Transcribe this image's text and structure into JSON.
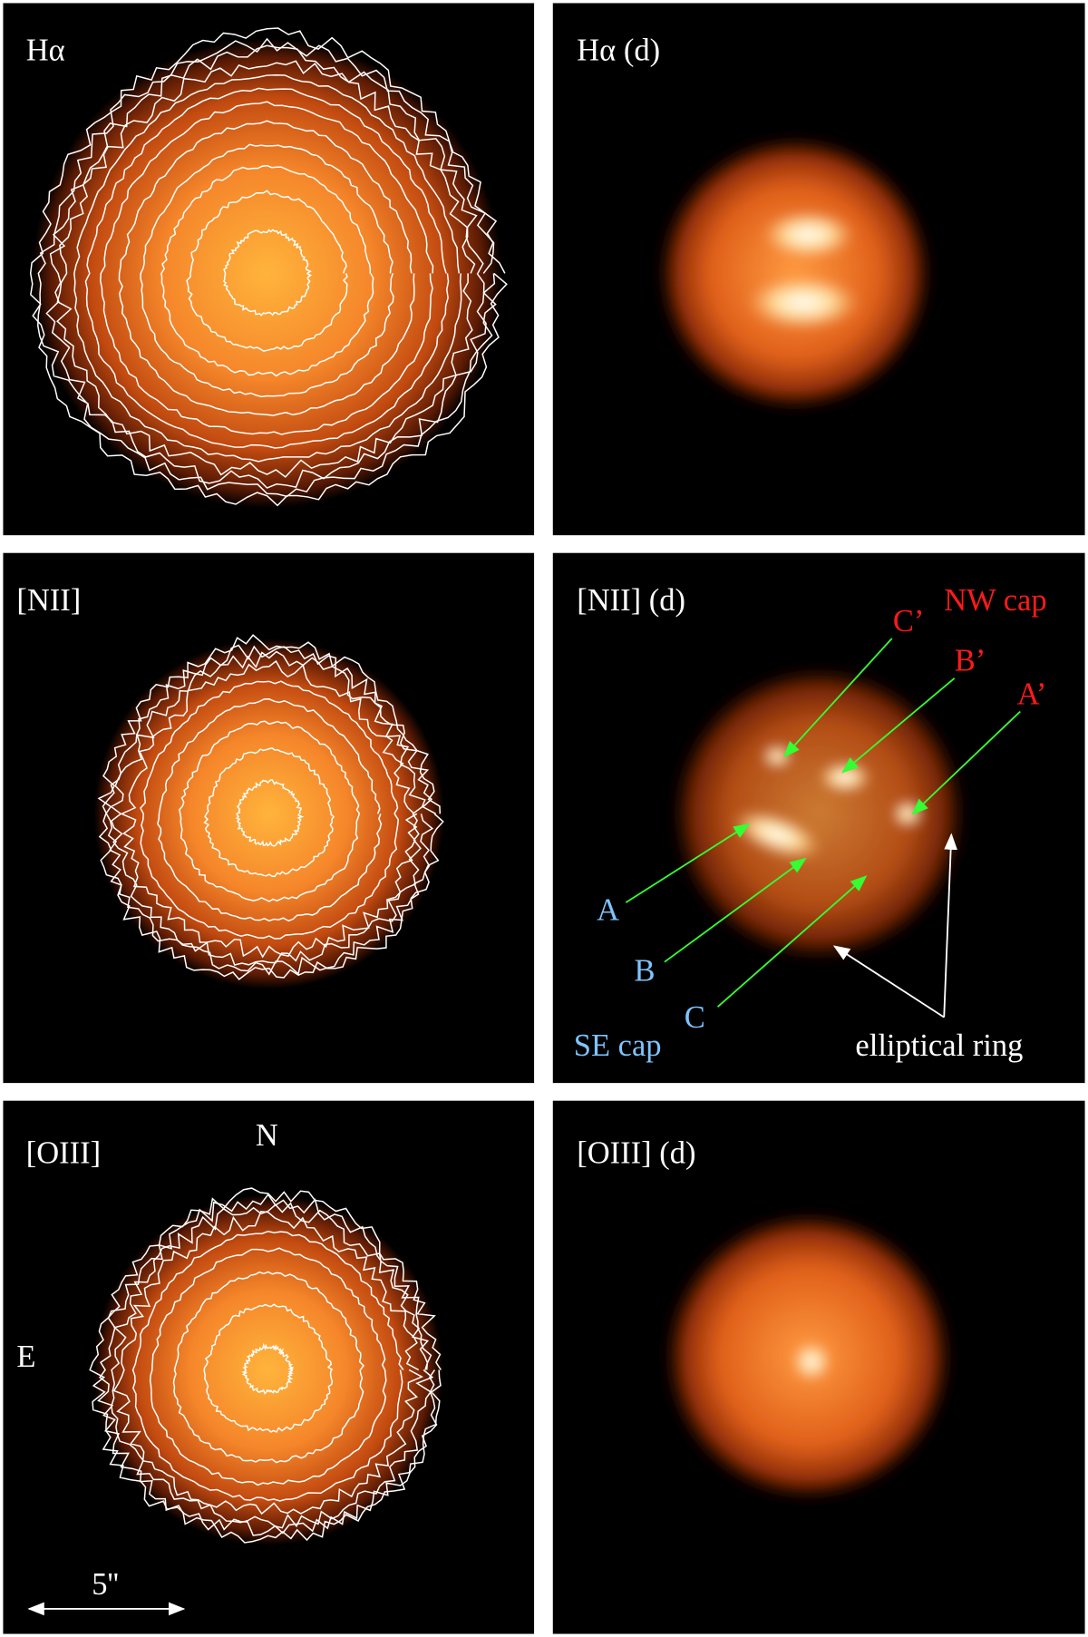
{
  "panels": [
    {
      "label": "Hα"
    },
    {
      "label": "Hα (d)"
    },
    {
      "label": "[NII]"
    },
    {
      "label": "[NII] (d)",
      "annotations": {
        "nw_cap": "NW cap",
        "c_prime": "C’",
        "b_prime": "B’",
        "a_prime": "A’",
        "a": "A",
        "b": "B",
        "c": "C",
        "se_cap": "SE cap",
        "ring": "elliptical ring"
      }
    },
    {
      "label": "[OIII]",
      "north": "N",
      "east": "E",
      "scale": "5''"
    },
    {
      "label": "[OIII] (d)"
    }
  ]
}
